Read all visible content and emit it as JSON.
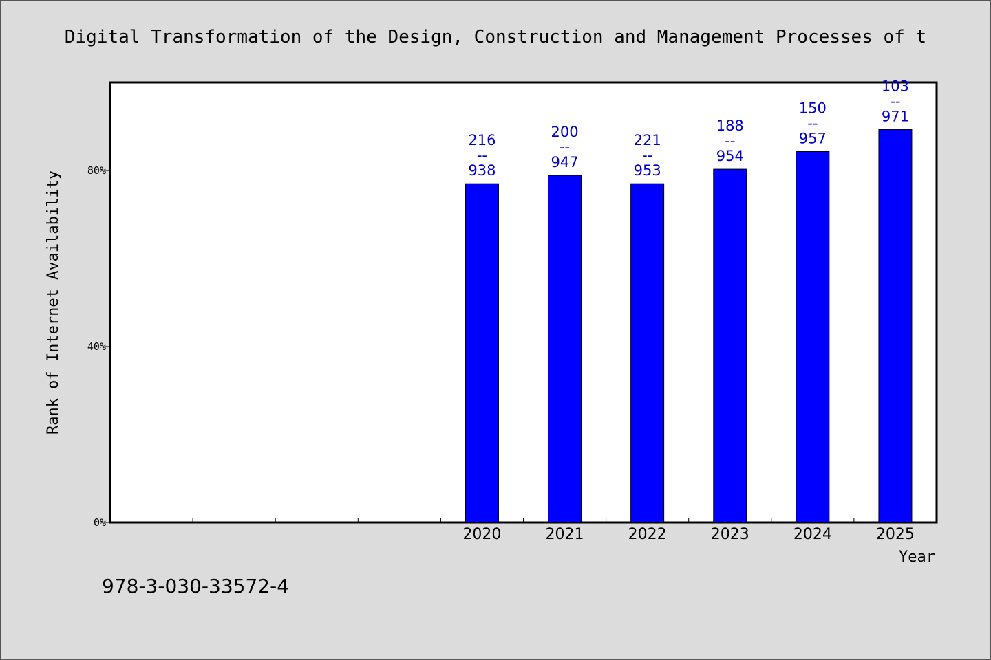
{
  "chart_data": {
    "type": "bar",
    "title": "Digital Transformation of the Design, Construction and Management Processes of t",
    "xlabel": "Year",
    "ylabel": "Rank of Internet Availability",
    "ylim": [
      0,
      100
    ],
    "yticks": [
      "0%",
      "40%",
      "80%"
    ],
    "ytick_values": [
      0,
      40,
      80
    ],
    "x_slots": 10,
    "categories": [
      "2020",
      "2021",
      "2022",
      "2023",
      "2024",
      "2025"
    ],
    "category_slots": [
      4,
      5,
      6,
      7,
      8,
      9
    ],
    "values": [
      77.0,
      78.9,
      77.0,
      80.3,
      84.3,
      89.3
    ],
    "data_labels": [
      [
        "216",
        "--",
        "938"
      ],
      [
        "200",
        "--",
        "947"
      ],
      [
        "221",
        "--",
        "953"
      ],
      [
        "188",
        "--",
        "954"
      ],
      [
        "150",
        "--",
        "957"
      ],
      [
        "103",
        "--",
        "971"
      ]
    ],
    "bar_color": "#0000ff",
    "label_color": "#0000c8",
    "grid": false,
    "legend": "none"
  },
  "footer": {
    "isbn": "978-3-030-33572-4"
  },
  "colors": {
    "background": "#dcdcdc",
    "plot_area": "#ffffff"
  }
}
